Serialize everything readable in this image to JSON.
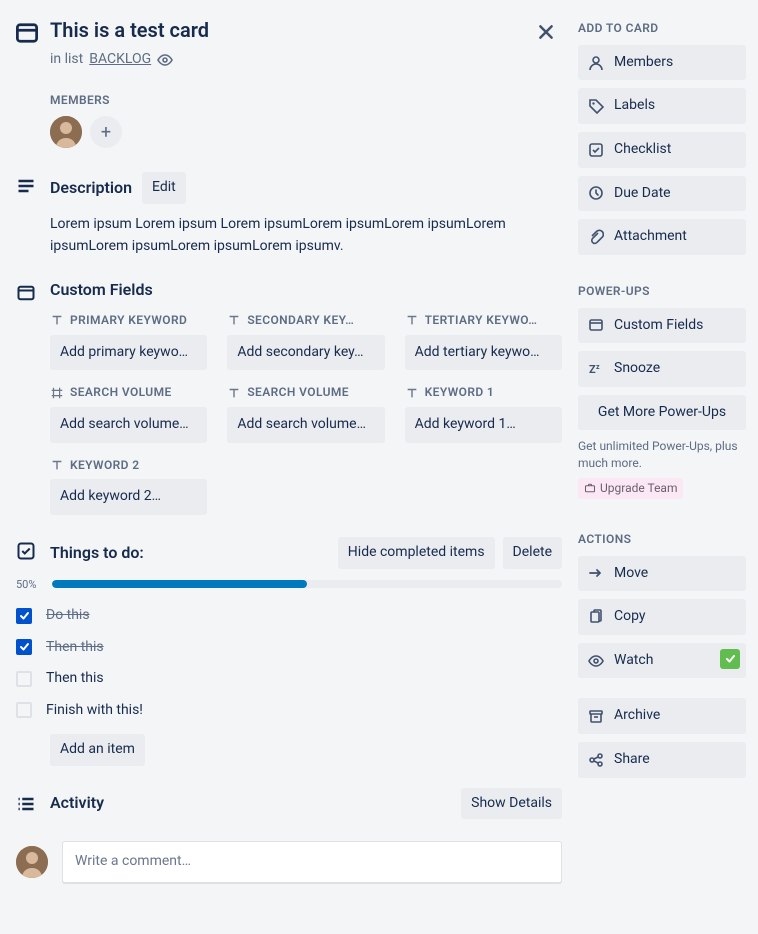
{
  "title": "This is a test card",
  "subtitle": {
    "prefix": "in list",
    "list_name": "BACKLOG"
  },
  "members": {
    "label": "MEMBERS"
  },
  "description": {
    "heading": "Description",
    "edit_label": "Edit",
    "text": "Lorem ipsum Lorem ipsum Lorem ipsumLorem ipsumLorem ipsumLorem ipsumLorem ipsumLorem ipsumLorem ipsumv."
  },
  "custom_fields": {
    "heading": "Custom Fields",
    "fields": [
      {
        "type": "text",
        "label": "PRIMARY KEYWORD",
        "placeholder": "Add primary keywo…"
      },
      {
        "type": "text",
        "label": "SECONDARY KEY…",
        "placeholder": "Add secondary key…"
      },
      {
        "type": "text",
        "label": "TERTIARY KEYWO…",
        "placeholder": "Add tertiary keywo…"
      },
      {
        "type": "number",
        "label": "SEARCH VOLUME",
        "placeholder": "Add search volume…"
      },
      {
        "type": "text",
        "label": "SEARCH VOLUME",
        "placeholder": "Add search volume…"
      },
      {
        "type": "text",
        "label": "KEYWORD 1",
        "placeholder": "Add keyword 1…"
      },
      {
        "type": "text",
        "label": "KEYWORD 2",
        "placeholder": "Add keyword 2…"
      }
    ]
  },
  "checklist": {
    "heading": "Things to do:",
    "hide_label": "Hide completed items",
    "delete_label": "Delete",
    "progress_pct": "50%",
    "progress_value": 50,
    "items": [
      {
        "text": "Do this",
        "done": true
      },
      {
        "text": "Then this",
        "done": true
      },
      {
        "text": "Then this",
        "done": false
      },
      {
        "text": "Finish with this!",
        "done": false
      }
    ],
    "add_item_label": "Add an item"
  },
  "activity": {
    "heading": "Activity",
    "show_details_label": "Show Details",
    "comment_placeholder": "Write a comment…"
  },
  "sidebar": {
    "add_to_card": {
      "heading": "ADD TO CARD",
      "items": [
        {
          "icon": "user",
          "label": "Members"
        },
        {
          "icon": "tag",
          "label": "Labels"
        },
        {
          "icon": "checklist",
          "label": "Checklist"
        },
        {
          "icon": "clock",
          "label": "Due Date"
        },
        {
          "icon": "attachment",
          "label": "Attachment"
        }
      ]
    },
    "powerups": {
      "heading": "POWER-UPS",
      "items": [
        {
          "icon": "card",
          "label": "Custom Fields"
        },
        {
          "icon": "snooze",
          "label": "Snooze"
        }
      ],
      "get_more_label": "Get More Power-Ups",
      "note": "Get unlimited Power-Ups, plus much more.",
      "upgrade_label": "Upgrade Team"
    },
    "actions": {
      "heading": "ACTIONS",
      "items": [
        {
          "icon": "arrow",
          "label": "Move"
        },
        {
          "icon": "copy",
          "label": "Copy"
        },
        {
          "icon": "eye",
          "label": "Watch",
          "watching": true
        },
        {
          "icon": "archive",
          "label": "Archive",
          "gap_before": true
        },
        {
          "icon": "share",
          "label": "Share"
        }
      ]
    }
  },
  "colors": {
    "progress_fill": "#0079bf",
    "checkbox_checked": "#0052cc",
    "watch_indicator": "#61bd4f"
  }
}
